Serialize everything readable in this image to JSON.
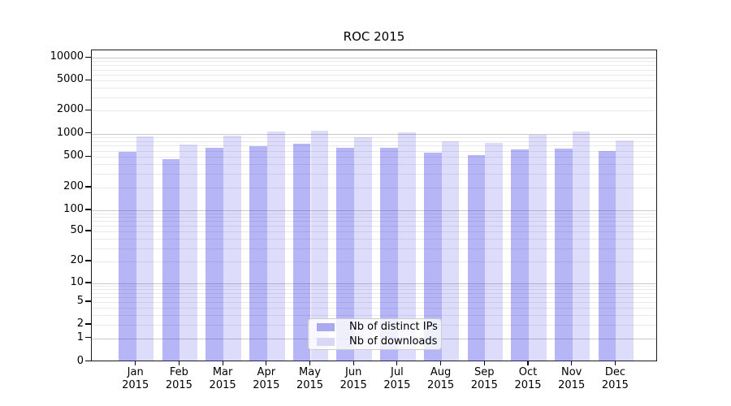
{
  "chart_data": {
    "type": "bar",
    "title": "ROC 2015",
    "categories": [
      "Jan 2015",
      "Feb 2015",
      "Mar 2015",
      "Apr 2015",
      "May 2015",
      "Jun 2015",
      "Jul 2015",
      "Aug 2015",
      "Sep 2015",
      "Oct 2015",
      "Nov 2015",
      "Dec 2015"
    ],
    "series": [
      {
        "name": "Nb of distinct IPs",
        "color": "rgba(45,45,230,0.35)",
        "legend_color": "#a9a9ef",
        "values": [
          585,
          470,
          655,
          685,
          740,
          650,
          660,
          565,
          530,
          630,
          635,
          595
        ]
      },
      {
        "name": "Nb of downloads",
        "color": "rgba(45,45,230,0.16)",
        "legend_color": "#d8d8f6",
        "values": [
          920,
          720,
          940,
          1060,
          1090,
          905,
          1030,
          795,
          760,
          970,
          1070,
          820
        ]
      }
    ],
    "xlabel": "",
    "ylabel": "",
    "yscale": "symlog",
    "ylim": [
      0,
      12500
    ],
    "y_ticks": [
      0,
      1,
      2,
      5,
      10,
      20,
      50,
      100,
      200,
      500,
      1000,
      2000,
      5000,
      10000
    ],
    "y_tick_labels": [
      "0",
      "1",
      "2",
      "5",
      "10",
      "20",
      "50",
      "100",
      "200",
      "500",
      "1000",
      "2000",
      "5000",
      "10000"
    ],
    "grid": "horizontal major (decades, darker) + log minor (lighter)",
    "legend_position": "lower center inside plot"
  }
}
